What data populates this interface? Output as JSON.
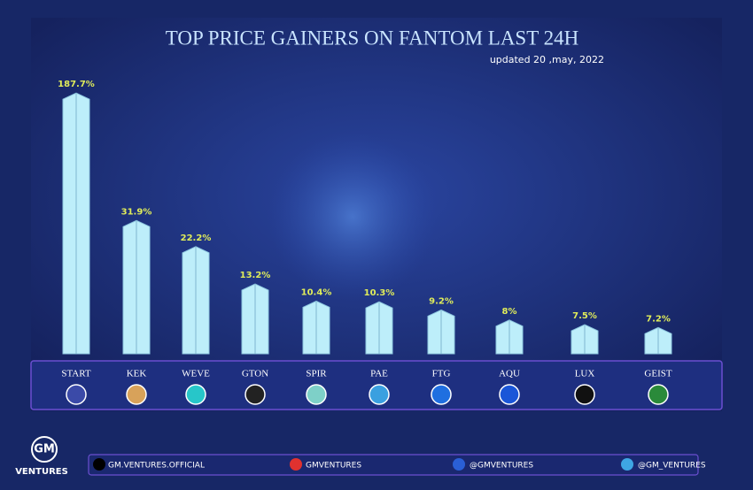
{
  "chart_data": {
    "type": "bar",
    "title": "TOP PRICE GAINERS ON FANTOM LAST 24H",
    "subtitle": "updated 20 ,may, 2022",
    "categories": [
      "START",
      "KEK",
      "WEVE",
      "GTON",
      "SPIR",
      "PAE",
      "FTG",
      "AQU",
      "LUX",
      "GEIST"
    ],
    "values": [
      187.7,
      31.9,
      22.2,
      13.2,
      10.4,
      10.3,
      9.2,
      8,
      7.5,
      7.2
    ],
    "value_labels": [
      "187.7%",
      "31.9%",
      "22.2%",
      "13.2%",
      "10.4%",
      "10.3%",
      "9.2%",
      "8%",
      "7.5%",
      "7.2%"
    ],
    "color": "#bdeefa",
    "log_scale": true,
    "ylim": [
      5,
      200
    ]
  },
  "brand": {
    "logo": "GM",
    "name": "VENTURES"
  },
  "footer": {
    "tiktok": "GM.VENTURES.OFFICIAL",
    "youtube": "GMVENTURES",
    "facebook": "@GMVENTURES",
    "telegram": "@GM_VENTURES"
  }
}
